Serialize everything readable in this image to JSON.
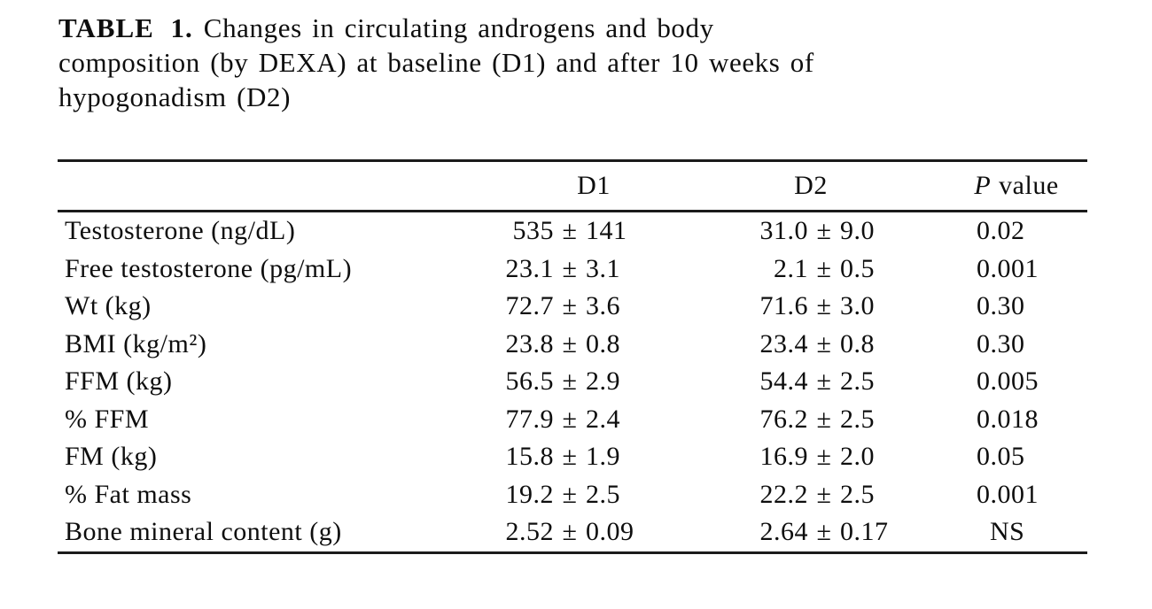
{
  "caption": {
    "label": "TABLE 1.",
    "line1": "Changes in circulating androgens and body",
    "line2": "composition (by DEXA) at baseline (D1) and after 10 weeks of",
    "line3": "hypogonadism (D2)"
  },
  "columns": {
    "d1": "D1",
    "d2": "D2",
    "p_italic": "P",
    "p_rest": "value"
  },
  "symbols": {
    "pm": "±"
  },
  "rows": [
    {
      "label": "Testosterone (ng/dL)",
      "d1_mean": "535",
      "d1_sd": "141",
      "d2_mean": "31.0",
      "d2_sd": "9.0",
      "p": "0.02"
    },
    {
      "label": "Free testosterone (pg/mL)",
      "d1_mean": "23.1",
      "d1_sd": "3.1",
      "d2_mean": "2.1",
      "d2_sd": "0.5",
      "p": "0.001"
    },
    {
      "label": "Wt (kg)",
      "d1_mean": "72.7",
      "d1_sd": "3.6",
      "d2_mean": "71.6",
      "d2_sd": "3.0",
      "p": "0.30"
    },
    {
      "label": "BMI (kg/m²)",
      "d1_mean": "23.8",
      "d1_sd": "0.8",
      "d2_mean": "23.4",
      "d2_sd": "0.8",
      "p": "0.30"
    },
    {
      "label": "FFM (kg)",
      "d1_mean": "56.5",
      "d1_sd": "2.9",
      "d2_mean": "54.4",
      "d2_sd": "2.5",
      "p": "0.005"
    },
    {
      "label": "% FFM",
      "d1_mean": "77.9",
      "d1_sd": "2.4",
      "d2_mean": "76.2",
      "d2_sd": "2.5",
      "p": "0.018"
    },
    {
      "label": "FM (kg)",
      "d1_mean": "15.8",
      "d1_sd": "1.9",
      "d2_mean": "16.9",
      "d2_sd": "2.0",
      "p": "0.05"
    },
    {
      "label": "% Fat mass",
      "d1_mean": "19.2",
      "d1_sd": "2.5",
      "d2_mean": "22.2",
      "d2_sd": "2.5",
      "p": "0.001"
    },
    {
      "label": "Bone mineral content (g)",
      "d1_mean": "2.52",
      "d1_sd": "0.09",
      "d2_mean": "2.64",
      "d2_sd": "0.17",
      "p": "NS"
    }
  ]
}
